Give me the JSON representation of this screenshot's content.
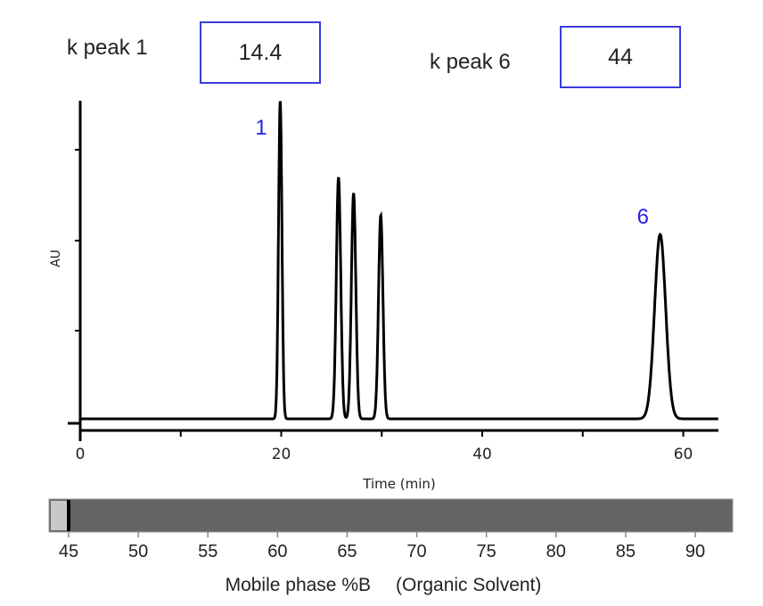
{
  "inputs": {
    "k_peak_1": {
      "label": "k peak 1",
      "value": "14.4"
    },
    "k_peak_6": {
      "label": "k peak 6",
      "value": "44"
    }
  },
  "colors": {
    "box_border": "#3a3adf",
    "peak_label": "#2323e6",
    "trace": "#000000",
    "gradient_bar": "#646464",
    "gradient_start": "#c8c8c8"
  },
  "chart_data": {
    "type": "line",
    "title": "",
    "xlabel": "Time (min)",
    "ylabel": "AU",
    "xlim": [
      0,
      63.5
    ],
    "ylim": [
      0,
      1
    ],
    "x_ticks": [
      0,
      20,
      40,
      60
    ],
    "x_tick_labels": [
      "0",
      "20",
      "40",
      "60"
    ],
    "grid": false,
    "peaks": [
      {
        "label": "1",
        "time": 19.9,
        "height": 1.0,
        "width": 0.17
      },
      {
        "label": "",
        "time": 25.7,
        "height": 0.76,
        "width": 0.22
      },
      {
        "label": "",
        "time": 27.2,
        "height": 0.71,
        "width": 0.22
      },
      {
        "label": "",
        "time": 29.9,
        "height": 0.64,
        "width": 0.22
      },
      {
        "label": "",
        "time": 30.2,
        "height": 0,
        "width": 0.2
      },
      {
        "label": "6",
        "time": 57.7,
        "height": 0.58,
        "width": 0.55
      }
    ],
    "gradient": {
      "label": "Mobile phase %B",
      "label_note": "(Organic Solvent)",
      "range": [
        44,
        93
      ],
      "ticks": [
        "45",
        "50",
        "55",
        "60",
        "65",
        "70",
        "75",
        "80",
        "85",
        "90"
      ],
      "current_value": 45
    }
  }
}
